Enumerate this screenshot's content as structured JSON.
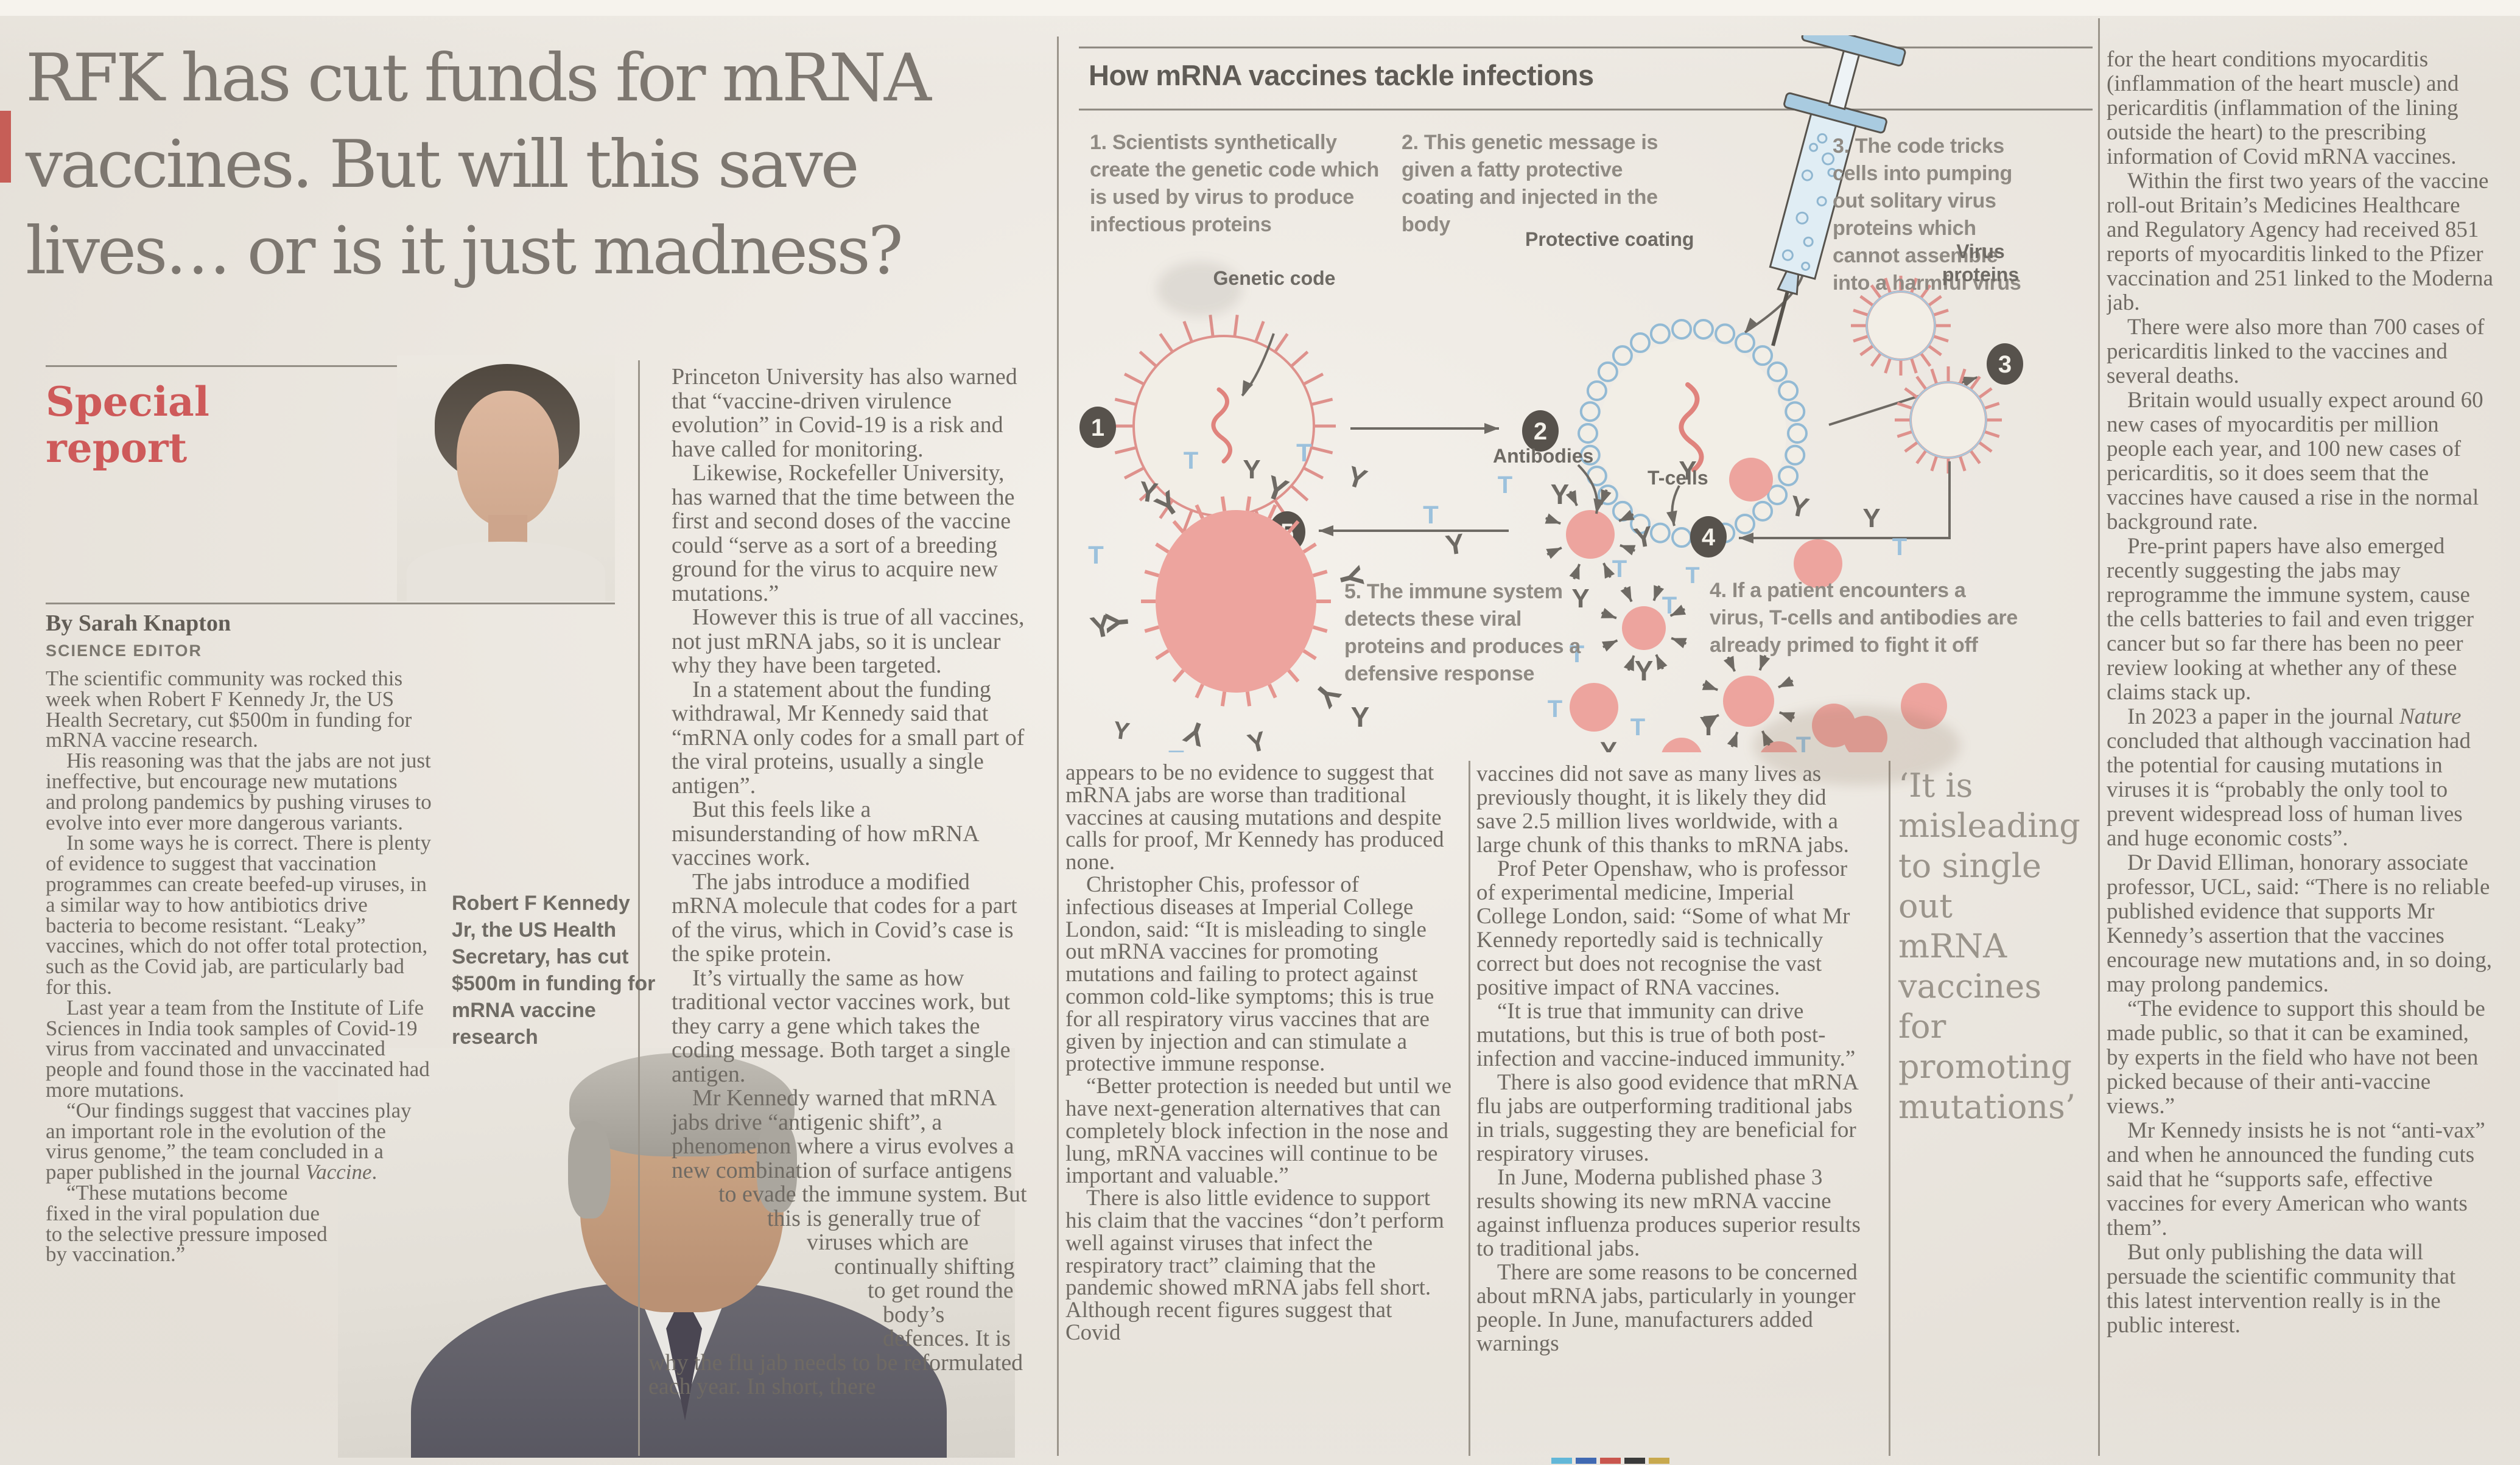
{
  "headline": {
    "lines": [
      "RFK has cut funds for mRNA",
      "vaccines. But will this save",
      "lives… or is it just madness?"
    ]
  },
  "kicker": "Special report",
  "byline": {
    "by": "By Sarah Knapton",
    "role": "SCIENCE EDITOR"
  },
  "article": {
    "col1": [
      "The scientific community was rocked this week when Robert F Kennedy Jr, the US Health Secretary, cut $500m in funding for mRNA vaccine research.",
      "His reasoning was that the jabs are not just ineffective, but encourage new mutations and prolong pandemics by pushing viruses to evolve into ever more dangerous variants.",
      "In some ways he is correct. There is plenty of evidence to suggest that vaccination programmes can create beefed-up viruses, in a similar way to how antibiotics drive bacteria to become resistant. “Leaky” vaccines, which do not offer total protection, such as the Covid jab, are particularly bad for this.",
      "Last year a team from the Institute of Life Sciences in India took samples of Covid-19 virus from vaccinated and unvaccinated people and found those in the vaccinated had more mutations.",
      "“Our findings suggest that vaccines play an important role in the evolution of the virus genome,” the team concluded in a paper published in the journal <i>Vaccine</i>.",
      "“These mutations become fixed in the viral population due to the selective pressure imposed by vaccination.”"
    ],
    "col2": [
      "Princeton University has also warned that “vaccine-driven virulence evolution” in Covid-19 is a risk and have called for monitoring.",
      "Likewise, Rockefeller University, has warned that the time between the first and second doses of the vaccine could “serve as a sort of a breeding ground for the virus to acquire new mutations.”",
      "However this is true of all vaccines, not just mRNA jabs, so it is unclear why they have been targeted.",
      "In a statement about the funding withdrawal, Mr Kennedy said that “mRNA only codes for a small part of the viral proteins, usually a single antigen”.",
      "But this feels like a misunderstanding of how mRNA vaccines work.",
      "The jabs introduce a modified mRNA molecule that codes for a part of the virus, which in Covid’s case is the spike protein.",
      "It’s virtually the same as how traditional vector vaccines work, but they carry a gene which takes the coding message. Both target a single antigen.",
      "Mr Kennedy warned that mRNA jabs drive “antigenic shift”, a phenomenon where a virus evolves a new combination of surface antigens to evade the immune system. But this is generally true of viruses which are continually shifting to get round the body’s defences. It is why the flu jab needs to be reformulated each year. In short, there"
    ],
    "col3": [
      "appears to be no evidence to suggest that mRNA jabs are worse than traditional vaccines at causing mutations and despite calls for proof, Mr Kennedy has produced none.",
      "Christopher Chis, professor of infectious diseases at Imperial College London, said: “It is misleading to single out mRNA vaccines for promoting mutations and failing to protect against common cold-like symptoms; this is true for all respiratory virus vaccines that are given by injection and can stimulate a protective immune response.",
      "“Better protection is needed but until we have next-generation alternatives that can completely block infection in the nose and lung, mRNA vaccines will continue to be important and valuable.”",
      "There is also little evidence to support his claim that the vaccines “don’t perform well against viruses that infect the respiratory tract” claiming that the pandemic showed mRNA jabs fell short. Although recent figures suggest that Covid"
    ],
    "col4": [
      "vaccines did not save as many lives as previously thought, it is likely they did save 2.5 million lives worldwide, with a large chunk of this thanks to mRNA jabs.",
      "Prof Peter Openshaw, who is professor of experimental medicine, Imperial College London, said: “Some of what Mr Kennedy reportedly said is technically correct but does not recognise the vast positive impact of RNA vaccines.",
      "“It is true that immunity can drive mutations, but this is true of both post-infection and vaccine-induced immunity.”",
      "There is also good evidence that mRNA flu jabs are outperforming traditional jabs in trials, suggesting they are beneficial for respiratory viruses.",
      "In June, Moderna published phase 3 results showing its new mRNA vaccine against influenza produces superior results to traditional jabs.",
      "There are some reasons to be concerned about mRNA jabs, particularly in younger people. In June, manufacturers added warnings"
    ],
    "col5": [
      "for the heart conditions myocarditis (inflammation of the heart muscle) and pericarditis (inflammation of the lining outside the heart) to the prescribing information of Covid mRNA vaccines.",
      "Within the first two years of the vaccine roll-out Britain’s Medicines Healthcare and Regulatory Agency had received 851 reports of myocarditis linked to the Pfizer vaccination and 251 linked to the Moderna jab.",
      "There were also more than 700 cases of pericarditis linked to the vaccines and several deaths.",
      "Britain would usually expect around 60 new cases of myocarditis per million people each year, and 100 new cases of pericarditis, so it does seem that the vaccines have caused a rise in the normal background rate.",
      "Pre-print papers have also emerged recently suggesting the jabs may reprogramme the immune system, cause the cells batteries to fail and even trigger cancer but so far there has been no peer review looking at whether any of these claims stack up.",
      "In 2023 a paper in the journal <i>Nature</i> concluded that although vaccination had the potential for causing mutations in viruses it is “probably the only tool to prevent widespread loss of human lives and huge economic costs”.",
      "Dr David Elliman, honorary associate professor, UCL, said: “There is no reliable published evidence that supports Mr Kennedy’s assertion that the vaccines encourage new mutations and, in so doing, may prolong pandemics.",
      "“The evidence to support this should be made public, so that it can be examined, by experts in the field who have not been picked because of their anti-vaccine views.”",
      "Mr Kennedy insists he is not “anti-vax” and when he announced the funding cuts said that he “supports safe, effective vaccines for every American who wants them”.",
      "But only publishing the data will persuade the scientific community that this latest intervention really is in the public interest."
    ]
  },
  "pull_quote": "‘It is misleading to single out mRNA vaccines for promoting mutations’",
  "photo_caption": "Robert F Kennedy Jr, the US Health Secretary, has cut $500m in funding for mRNA vaccine research",
  "infographic": {
    "title": "How mRNA vaccines tackle infections",
    "steps": [
      {
        "num": "1",
        "text": "1. Scientists synthetically create the genetic code which is used by virus to produce infectious proteins"
      },
      {
        "num": "2",
        "text": "2. This genetic message is given a fatty protective coating and injected in the body"
      },
      {
        "num": "3",
        "text": "3. The code tricks cells into pumping out solitary virus proteins which cannot assemble into a harmful virus"
      },
      {
        "num": "4",
        "text": "4. If a patient encounters a virus, T-cells and antibodies are already primed to fight it off"
      },
      {
        "num": "5",
        "text": "5. The immune system detects these viral proteins and produces a defensive response"
      }
    ],
    "labels": {
      "genetic_code": "Genetic code",
      "protective_coating": "Protective coating",
      "virus_proteins": "Virus proteins",
      "antibodies": "Antibodies",
      "t_cells": "T-cells"
    }
  },
  "colors": {
    "accent_red": "#ce5a5a",
    "body_ink": "#6f6a63",
    "infographic_pink": "#eda49e",
    "infographic_blue": "#a9cbe0",
    "tcell_blue": "#9cc1dc",
    "paper": "#efeae2"
  }
}
